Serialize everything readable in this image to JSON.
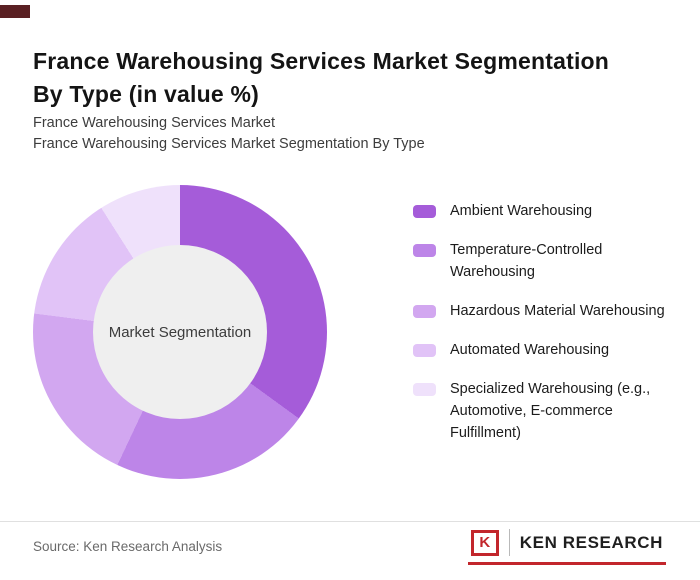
{
  "page": {
    "title_line1": "France Warehousing Services Market Segmentation",
    "title_line2": "By Type (in value %)",
    "subtitle1": "France Warehousing Services Market",
    "subtitle2": "France Warehousing Services Market Segmentation By Type",
    "source": "Source: Ken Research Analysis"
  },
  "logo": {
    "letter": "K",
    "text": "KEN RESEARCH",
    "accent_color": "#c2262c"
  },
  "chart_data": {
    "type": "pie",
    "donut": true,
    "title": "France Warehousing Services Market Segmentation By Type (in value %)",
    "center_label": "Market Segmentation",
    "legend_position": "right",
    "hole_color": "#efefef",
    "segments": [
      {
        "label": "Ambient Warehousing",
        "value": 35,
        "color": "#a55cd9"
      },
      {
        "label": "Temperature-Controlled Warehousing",
        "value": 22,
        "color": "#bd85e8"
      },
      {
        "label": "Hazardous Material Warehousing",
        "value": 20,
        "color": "#d2a7f0"
      },
      {
        "label": "Automated Warehousing",
        "value": 14,
        "color": "#e1c3f7"
      },
      {
        "label": "Specialized Warehousing (e.g., Automotive, E-commerce Fulfillment)",
        "value": 9,
        "color": "#efe1fb"
      }
    ]
  }
}
